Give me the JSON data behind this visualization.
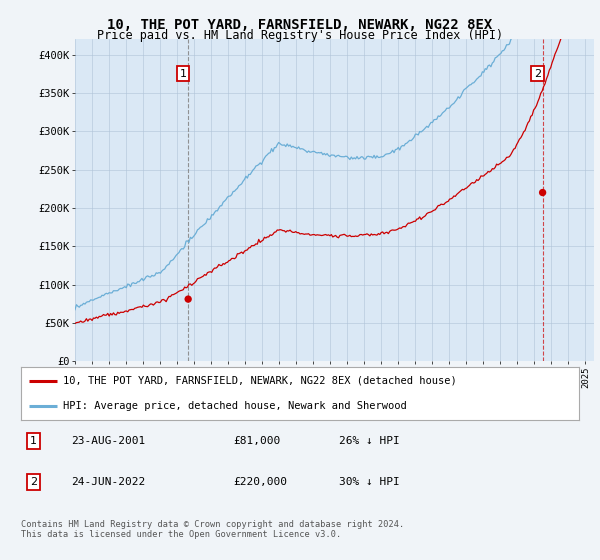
{
  "title": "10, THE POT YARD, FARNSFIELD, NEWARK, NG22 8EX",
  "subtitle": "Price paid vs. HM Land Registry's House Price Index (HPI)",
  "ylim": [
    0,
    420000
  ],
  "yticks": [
    0,
    50000,
    100000,
    150000,
    200000,
    250000,
    300000,
    350000,
    400000
  ],
  "ytick_labels": [
    "£0",
    "£50K",
    "£100K",
    "£150K",
    "£200K",
    "£250K",
    "£300K",
    "£350K",
    "£400K"
  ],
  "xlim_start": 1995.0,
  "xlim_end": 2025.5,
  "xtick_years": [
    1995,
    1996,
    1997,
    1998,
    1999,
    2000,
    2001,
    2002,
    2003,
    2004,
    2005,
    2006,
    2007,
    2008,
    2009,
    2010,
    2011,
    2012,
    2013,
    2014,
    2015,
    2016,
    2017,
    2018,
    2019,
    2020,
    2021,
    2022,
    2023,
    2024,
    2025
  ],
  "hpi_color": "#6BAED6",
  "price_color": "#CC0000",
  "transaction1_date": 2001.65,
  "transaction1_price": 81000,
  "transaction2_date": 2022.48,
  "transaction2_price": 220000,
  "legend_line1": "10, THE POT YARD, FARNSFIELD, NEWARK, NG22 8EX (detached house)",
  "legend_line2": "HPI: Average price, detached house, Newark and Sherwood",
  "table_row1_date": "23-AUG-2001",
  "table_row1_price": "£81,000",
  "table_row1_hpi": "26% ↓ HPI",
  "table_row2_date": "24-JUN-2022",
  "table_row2_price": "£220,000",
  "table_row2_hpi": "30% ↓ HPI",
  "footer": "Contains HM Land Registry data © Crown copyright and database right 2024.\nThis data is licensed under the Open Government Licence v3.0.",
  "bg_color": "#F0F4F8",
  "plot_bg": "#DAE8F5",
  "plot_inner_bg": "#FFFFFF"
}
